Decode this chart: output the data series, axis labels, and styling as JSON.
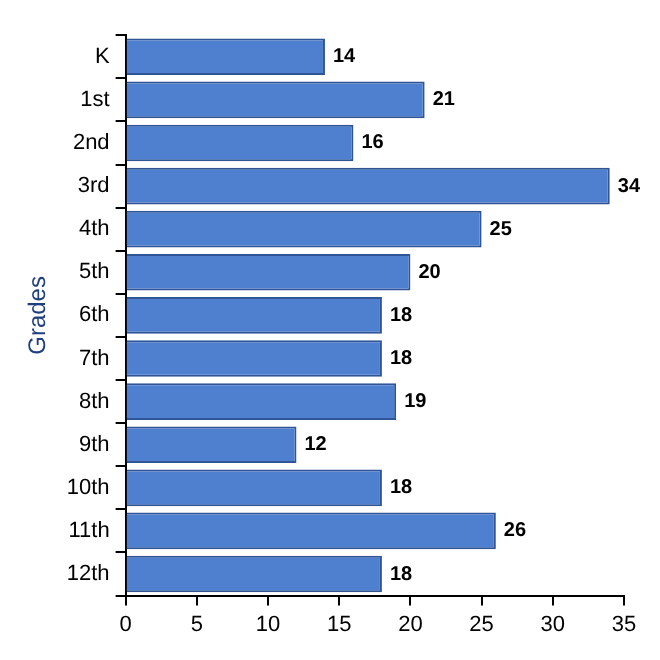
{
  "chart_data": {
    "type": "bar",
    "orientation": "horizontal",
    "ylabel": "Grades",
    "categories": [
      "K",
      "1st",
      "2nd",
      "3rd",
      "4th",
      "5th",
      "6th",
      "7th",
      "8th",
      "9th",
      "10th",
      "11th",
      "12th"
    ],
    "values": [
      14,
      21,
      16,
      34,
      25,
      20,
      18,
      18,
      19,
      12,
      18,
      26,
      18
    ],
    "color": "#4f7fcf",
    "xlim": [
      0,
      35
    ],
    "xticks": [
      0,
      5,
      10,
      15,
      20,
      25,
      30,
      35
    ],
    "grid": false,
    "legend": false,
    "data_labels": true
  }
}
